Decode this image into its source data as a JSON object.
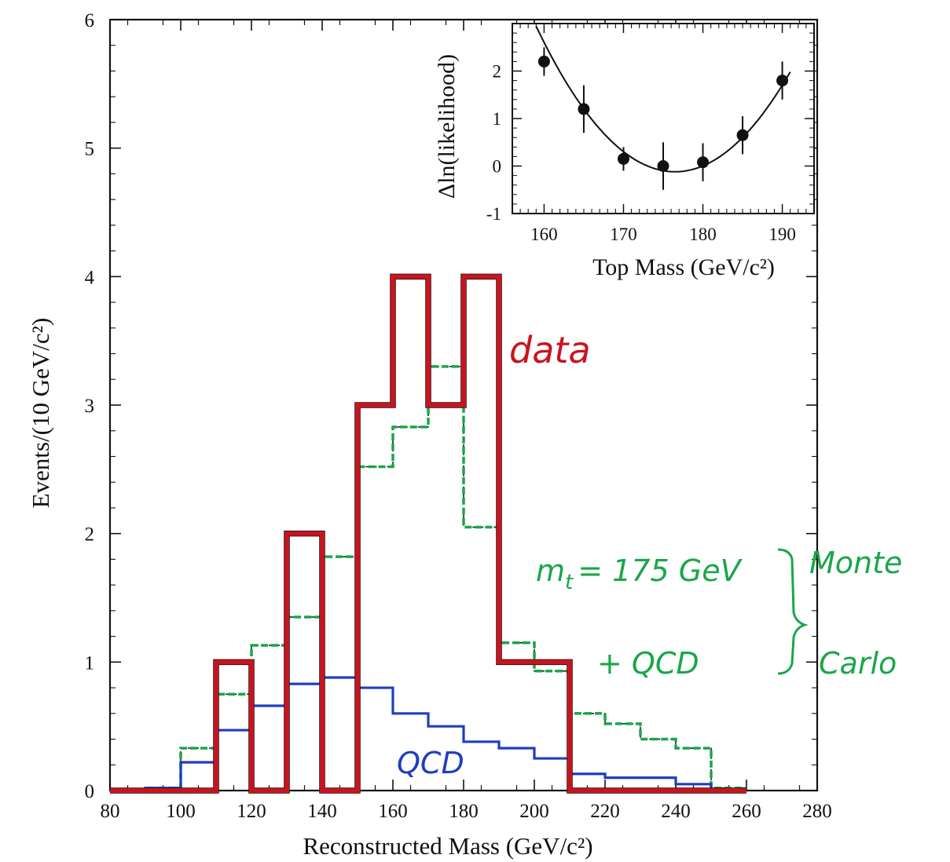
{
  "chart_data": [
    {
      "type": "step",
      "xlabel": "Reconstructed Mass (GeV/c²)",
      "ylabel": "Events/(10 GeV/c²)",
      "xlim": [
        80,
        280
      ],
      "ylim": [
        0,
        6
      ],
      "xticks": [
        80,
        100,
        120,
        140,
        160,
        180,
        200,
        220,
        240,
        260,
        280
      ],
      "yticks": [
        0,
        1,
        2,
        3,
        4,
        5,
        6
      ],
      "bin_edges": [
        80,
        90,
        100,
        110,
        120,
        130,
        140,
        150,
        160,
        170,
        180,
        190,
        200,
        210,
        220,
        230,
        240,
        250,
        260
      ],
      "series": [
        {
          "name": "data",
          "color": "#c8141e",
          "style": "solid-thick",
          "values": [
            0,
            0,
            0,
            1,
            0,
            2,
            0,
            3,
            4,
            3,
            4,
            1,
            1,
            0,
            0,
            0,
            0,
            0
          ]
        },
        {
          "name": "m_t = 175 GeV + QCD",
          "color": "#1aa64a",
          "style": "dashed",
          "values": [
            0,
            0.02,
            0.33,
            0.75,
            1.13,
            1.35,
            1.82,
            2.52,
            2.83,
            3.3,
            2.05,
            1.15,
            0.93,
            0.6,
            0.52,
            0.4,
            0.33,
            0.02
          ]
        },
        {
          "name": "QCD",
          "color": "#1f3ec0",
          "style": "solid",
          "values": [
            0,
            0.02,
            0.22,
            0.47,
            0.66,
            0.83,
            0.88,
            0.8,
            0.6,
            0.5,
            0.38,
            0.33,
            0.25,
            0.13,
            0.1,
            0.1,
            0.05,
            0.01
          ]
        }
      ],
      "annotations": {
        "data_label": "data",
        "mc_line1": "m",
        "mc_sub": "t",
        "mc_rest": "= 175 GeV",
        "mc_line2": "+ QCD",
        "mc_word1": "Monte",
        "mc_word2": "Carlo",
        "qcd_label": "QCD"
      }
    },
    {
      "type": "scatter",
      "xlabel": "Top Mass (GeV/c²)",
      "ylabel": "Δln(likelihood)",
      "xlim": [
        156,
        194
      ],
      "ylim": [
        -1,
        3
      ],
      "xticks": [
        160,
        170,
        180,
        190
      ],
      "yticks": [
        -1,
        0,
        1,
        2
      ],
      "points": [
        {
          "x": 160,
          "y": 2.2,
          "err": 0.3
        },
        {
          "x": 165,
          "y": 1.2,
          "err": 0.5
        },
        {
          "x": 170,
          "y": 0.15,
          "err": 0.25
        },
        {
          "x": 175,
          "y": 0.0,
          "err": 0.5
        },
        {
          "x": 180,
          "y": 0.08,
          "err": 0.4
        },
        {
          "x": 185,
          "y": 0.65,
          "err": 0.4
        },
        {
          "x": 190,
          "y": 1.8,
          "err": 0.4
        }
      ],
      "fit": {
        "type": "parabola",
        "x_min": 176.5,
        "y_min": -0.12,
        "curvature": 0.01
      }
    }
  ]
}
